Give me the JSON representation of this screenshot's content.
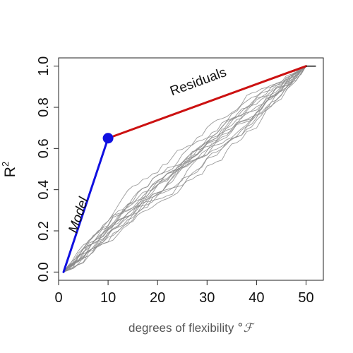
{
  "chart_data": {
    "type": "line",
    "title": "",
    "xlabel": "degrees of flexibility",
    "xlabel_symbol": "°ℱ",
    "ylabel_base": "R",
    "ylabel_sup": "2",
    "xlim": [
      0,
      53.5
    ],
    "ylim": [
      -0.04,
      1.04
    ],
    "xticks": [
      0,
      10,
      20,
      30,
      40,
      50
    ],
    "yticks": [
      0.0,
      0.2,
      0.4,
      0.6,
      0.8,
      1.0
    ],
    "xtick_labels": [
      "0",
      "10",
      "20",
      "30",
      "40",
      "50"
    ],
    "ytick_labels": [
      "0.0",
      "0.2",
      "0.4",
      "0.6",
      "0.8",
      "1.0"
    ],
    "grid": false,
    "colors": {
      "model": "#1010e0",
      "residuals": "#cc1111",
      "random": "#8a8a8a",
      "axis": "#222222",
      "text": "#111111",
      "xlabel": "#555555"
    },
    "series": [
      {
        "name": "Model",
        "x": [
          1,
          10
        ],
        "y": [
          0.0,
          0.65
        ]
      },
      {
        "name": "Residuals",
        "x": [
          10,
          50
        ],
        "y": [
          0.65,
          1.0
        ]
      }
    ],
    "highlight_point": {
      "x": 10,
      "y": 0.65
    },
    "end_segment": {
      "x": [
        50,
        52
      ],
      "y": [
        1.0,
        1.0
      ]
    },
    "random_curves": {
      "count": 16,
      "x_start": 1,
      "x_end": 50,
      "y_start": 0.0,
      "y_end": 1.0,
      "mid_range_at_x25": [
        0.2,
        0.55
      ]
    },
    "annotations": [
      {
        "text": "Model",
        "x": 4.8,
        "y": 0.27,
        "angle_data_slope": 0.0722
      },
      {
        "text": "Residuals",
        "x": 28.5,
        "y": 0.905,
        "angle_data_slope": 0.00875
      }
    ]
  }
}
